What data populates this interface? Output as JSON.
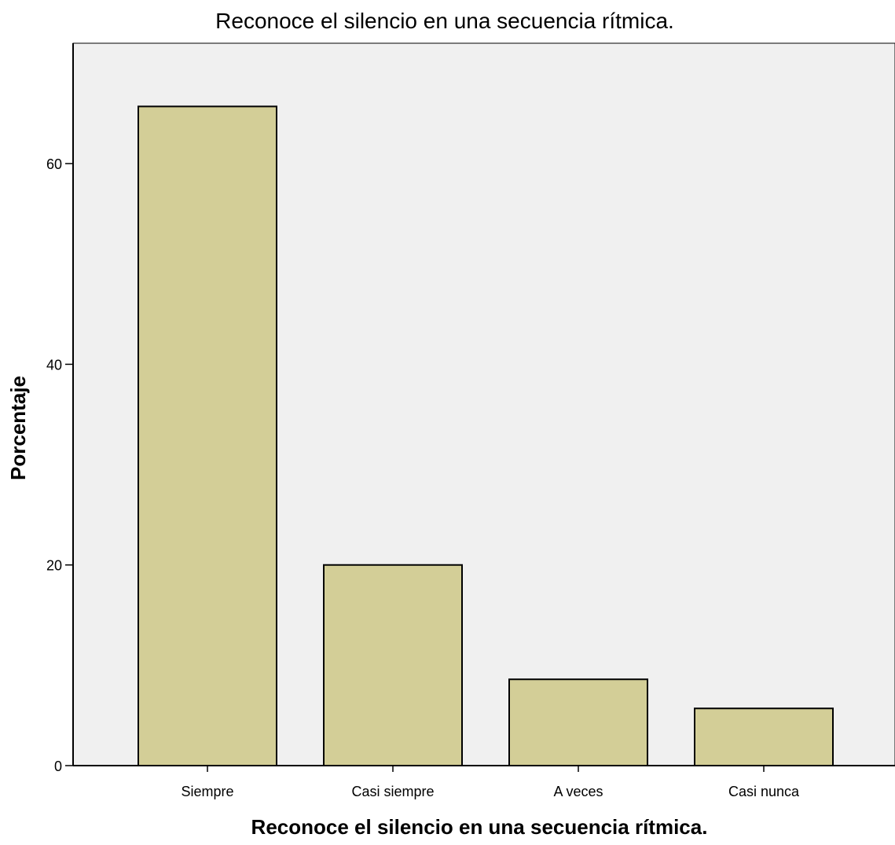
{
  "chart_data": {
    "type": "bar",
    "title": "Reconoce el silencio en una secuencia rítmica.",
    "xlabel": "Reconoce el silencio en una secuencia rítmica.",
    "ylabel": "Porcentaje",
    "categories": [
      "Siempre",
      "Casi siempre",
      "A veces",
      "Casi nunca"
    ],
    "values": [
      65.7,
      20.0,
      8.6,
      5.7
    ],
    "ylim": [
      0,
      72
    ],
    "yticks": [
      "0",
      "20",
      "40",
      "60"
    ],
    "grid": false,
    "legend": "none",
    "colors": {
      "bar_fill": "#d3ce97",
      "bar_stroke": "#000000",
      "plot_background": "#f0f0f0"
    }
  }
}
